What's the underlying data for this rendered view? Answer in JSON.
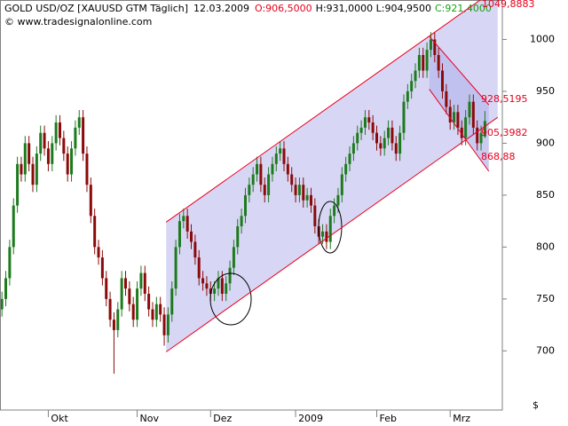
{
  "header": {
    "instrument": "GOLD USD/OZ [XAUUSD GTM  Täglich]",
    "date": "12.03.2009",
    "open": "O:906,5000",
    "high_low": "H:931,0000 L:904,9500",
    "close": "C:921,4000",
    "watermark": "© www.tradesignalonline.com"
  },
  "chart_data": {
    "type": "candlestick",
    "currency": "$",
    "open": [
      740,
      750,
      770,
      800,
      840,
      880,
      870,
      900,
      880,
      860,
      890,
      910,
      895,
      880,
      900,
      920,
      905,
      890,
      870,
      895,
      915,
      925,
      890,
      860,
      830,
      800,
      790,
      770,
      750,
      730,
      720,
      740,
      770,
      760,
      745,
      730,
      760,
      775,
      755,
      740,
      730,
      745,
      735,
      715,
      735,
      760,
      800,
      825,
      830,
      815,
      805,
      790,
      770,
      765,
      760,
      755,
      760,
      770,
      755,
      765,
      780,
      800,
      820,
      830,
      850,
      860,
      870,
      880,
      860,
      850,
      870,
      880,
      890,
      895,
      880,
      870,
      860,
      850,
      860,
      845,
      850,
      840,
      820,
      810,
      815,
      805,
      830,
      840,
      850,
      870,
      880,
      890,
      900,
      910,
      915,
      925,
      920,
      910,
      900,
      895,
      905,
      915,
      900,
      890,
      910,
      940,
      950,
      960,
      970,
      985,
      970,
      990,
      1000,
      985,
      970,
      950,
      935,
      920,
      930,
      915,
      905,
      925,
      940,
      915,
      900,
      906.5
    ],
    "high": [
      757,
      777,
      807,
      847,
      887,
      887,
      907,
      907,
      887,
      897,
      917,
      917,
      902,
      907,
      927,
      927,
      912,
      897,
      902,
      922,
      932,
      932,
      897,
      867,
      837,
      807,
      797,
      777,
      757,
      737,
      747,
      777,
      777,
      767,
      752,
      767,
      782,
      782,
      762,
      747,
      752,
      752,
      742,
      742,
      767,
      807,
      832,
      837,
      837,
      822,
      812,
      797,
      777,
      772,
      767,
      767,
      777,
      777,
      772,
      787,
      807,
      827,
      837,
      857,
      867,
      877,
      887,
      887,
      867,
      877,
      887,
      897,
      902,
      902,
      887,
      877,
      867,
      867,
      867,
      857,
      857,
      847,
      827,
      822,
      822,
      837,
      847,
      857,
      877,
      887,
      897,
      907,
      917,
      922,
      932,
      932,
      927,
      917,
      907,
      912,
      922,
      922,
      907,
      917,
      947,
      957,
      967,
      977,
      992,
      992,
      997,
      1007,
      1007,
      992,
      977,
      957,
      942,
      937,
      937,
      922,
      932,
      947,
      947,
      922,
      917,
      931
    ],
    "low": [
      733,
      743,
      763,
      793,
      833,
      863,
      863,
      873,
      853,
      853,
      883,
      888,
      873,
      873,
      893,
      898,
      883,
      863,
      863,
      888,
      908,
      883,
      853,
      823,
      793,
      783,
      763,
      743,
      723,
      678,
      713,
      733,
      753,
      738,
      723,
      723,
      753,
      748,
      733,
      723,
      723,
      728,
      705,
      708,
      728,
      753,
      793,
      818,
      808,
      798,
      783,
      763,
      758,
      753,
      748,
      748,
      753,
      748,
      748,
      758,
      773,
      793,
      813,
      823,
      843,
      853,
      863,
      853,
      843,
      843,
      863,
      873,
      883,
      873,
      863,
      853,
      843,
      843,
      838,
      838,
      833,
      813,
      803,
      803,
      798,
      798,
      823,
      833,
      843,
      863,
      873,
      883,
      893,
      903,
      908,
      913,
      903,
      893,
      888,
      888,
      898,
      893,
      883,
      883,
      903,
      933,
      943,
      953,
      963,
      963,
      963,
      983,
      978,
      963,
      943,
      928,
      913,
      913,
      908,
      898,
      898,
      918,
      908,
      893,
      893,
      904.95
    ],
    "close": [
      750,
      770,
      800,
      840,
      880,
      870,
      900,
      880,
      860,
      890,
      910,
      895,
      880,
      900,
      920,
      905,
      890,
      870,
      895,
      915,
      925,
      890,
      860,
      830,
      800,
      790,
      770,
      750,
      730,
      720,
      740,
      770,
      760,
      745,
      730,
      760,
      775,
      755,
      740,
      730,
      745,
      735,
      715,
      735,
      760,
      800,
      825,
      830,
      815,
      805,
      790,
      770,
      765,
      760,
      755,
      760,
      770,
      755,
      765,
      780,
      800,
      820,
      830,
      850,
      860,
      870,
      880,
      860,
      850,
      870,
      880,
      890,
      895,
      880,
      870,
      860,
      850,
      860,
      845,
      850,
      840,
      820,
      810,
      815,
      805,
      830,
      840,
      850,
      870,
      880,
      890,
      900,
      910,
      915,
      925,
      920,
      910,
      900,
      895,
      905,
      915,
      900,
      890,
      910,
      940,
      950,
      960,
      970,
      985,
      970,
      990,
      1000,
      985,
      970,
      950,
      935,
      920,
      930,
      915,
      905,
      925,
      940,
      915,
      900,
      910,
      921.4
    ],
    "up_color": "#1e7a1e",
    "down_color": "#8b0a0a",
    "xlim": [
      -0.5,
      129.5
    ],
    "xticks": [
      {
        "value": 12,
        "label": "Okt"
      },
      {
        "value": 35,
        "label": "Nov"
      },
      {
        "value": 54,
        "label": "Dez"
      },
      {
        "value": 76,
        "label": "2009"
      },
      {
        "value": 97,
        "label": "Feb"
      },
      {
        "value": 116,
        "label": "Mrz"
      }
    ],
    "ylim": [
      643,
      1038
    ],
    "yticks": [
      700,
      750,
      800,
      850,
      900,
      950,
      1000
    ],
    "channels": [
      {
        "color": "#e8001c",
        "fill": "#c9c9f2",
        "upper": [
          [
            42.5,
            824
          ],
          [
            128.3,
            1049.9
          ]
        ],
        "lower": [
          [
            42.5,
            699
          ],
          [
            128.3,
            925
          ]
        ]
      },
      {
        "color": "#e8001c",
        "fill": "#b9b9ec",
        "upper": [
          [
            110.6,
            1003
          ],
          [
            126,
            937
          ]
        ],
        "lower": [
          [
            110.6,
            952
          ],
          [
            126,
            873
          ]
        ]
      }
    ],
    "annotations": [
      "1049,8883",
      "928,5195",
      "905,3982",
      "868,88"
    ]
  }
}
